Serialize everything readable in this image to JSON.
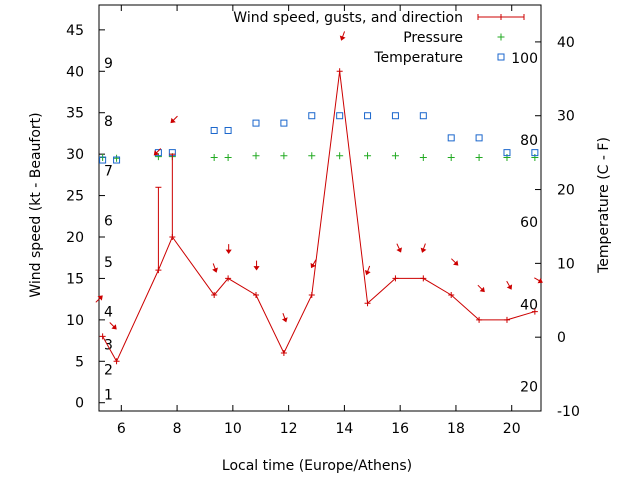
{
  "chart_data": {
    "type": "line",
    "xlabel": "Local time (Europe/Athens)",
    "ylabel_left": "Wind speed (kt - Beaufort)",
    "ylabel_right": "Temperature (C - F)",
    "xlim": [
      5.2,
      21.05
    ],
    "xticks": [
      6,
      8,
      10,
      12,
      14,
      16,
      18,
      20
    ],
    "ylim_left": [
      -1,
      48
    ],
    "yticks_left": [
      0,
      5,
      10,
      15,
      20,
      25,
      30,
      35,
      40,
      45
    ],
    "ylim_right": [
      -10,
      45
    ],
    "yticks_right": [
      -10,
      0,
      10,
      20,
      30,
      40
    ],
    "beaufort_labels": [
      {
        "label": "1",
        "kt": 1
      },
      {
        "label": "2",
        "kt": 4
      },
      {
        "label": "3",
        "kt": 7
      },
      {
        "label": "4",
        "kt": 11
      },
      {
        "label": "5",
        "kt": 17
      },
      {
        "label": "6",
        "kt": 22
      },
      {
        "label": "7",
        "kt": 28
      },
      {
        "label": "8",
        "kt": 34
      },
      {
        "label": "9",
        "kt": 41
      }
    ],
    "fahrenheit_labels": [
      {
        "label": "20",
        "celsius": -6.7
      },
      {
        "label": "40",
        "celsius": 4.4
      },
      {
        "label": "60",
        "celsius": 15.6
      },
      {
        "label": "80",
        "celsius": 26.7
      },
      {
        "label": "100",
        "celsius": 37.8
      }
    ],
    "legend": {
      "position": "top-right",
      "entries": [
        "Wind speed, gusts, and direction",
        "Pressure",
        "Temperature"
      ]
    },
    "colors": {
      "wind": "#cc0000",
      "pressure": "#22aa22",
      "temperature": "#1a66cc"
    },
    "wind_speed": {
      "name": "Wind speed, gusts, and direction",
      "x": [
        5.33,
        5.83,
        7.33,
        7.83,
        9.33,
        9.83,
        10.83,
        11.83,
        12.83,
        13.83,
        14.83,
        15.83,
        16.83,
        17.83,
        18.83,
        19.83,
        20.83
      ],
      "y": [
        8,
        5,
        16,
        20,
        13,
        15,
        13,
        6,
        13,
        40,
        12,
        15,
        15,
        13,
        10,
        10,
        11
      ],
      "gusts": [
        null,
        null,
        26,
        30,
        null,
        null,
        null,
        null,
        null,
        null,
        null,
        null,
        null,
        null,
        null,
        null,
        null
      ]
    },
    "wind_direction_arrows": [
      {
        "x": 5.2,
        "y": 12.5,
        "dir": 225
      },
      {
        "x": 5.7,
        "y": 9.3,
        "dir": 315
      },
      {
        "x": 7.3,
        "y": 30.3,
        "dir": 45
      },
      {
        "x": 7.9,
        "y": 34.2,
        "dir": 45
      },
      {
        "x": 9.35,
        "y": 16.3,
        "dir": 340
      },
      {
        "x": 9.85,
        "y": 18.6,
        "dir": 0
      },
      {
        "x": 10.85,
        "y": 16.6,
        "dir": 0
      },
      {
        "x": 11.85,
        "y": 10.3,
        "dir": 340
      },
      {
        "x": 12.9,
        "y": 16.8,
        "dir": 30
      },
      {
        "x": 13.95,
        "y": 44.3,
        "dir": 20
      },
      {
        "x": 14.85,
        "y": 16.0,
        "dir": 20
      },
      {
        "x": 15.95,
        "y": 18.7,
        "dir": 335
      },
      {
        "x": 16.85,
        "y": 18.7,
        "dir": 20
      },
      {
        "x": 17.95,
        "y": 17.0,
        "dir": 315
      },
      {
        "x": 18.9,
        "y": 13.8,
        "dir": 315
      },
      {
        "x": 19.9,
        "y": 14.2,
        "dir": 330
      },
      {
        "x": 20.95,
        "y": 14.8,
        "dir": 300
      }
    ],
    "pressure": {
      "name": "Pressure",
      "x": [
        5.33,
        5.83,
        7.33,
        7.83,
        9.33,
        9.83,
        10.83,
        11.83,
        12.83,
        13.83,
        14.83,
        15.83,
        16.83,
        17.83,
        18.83,
        19.83,
        20.83
      ],
      "y_left_axis": [
        29.6,
        29.5,
        29.7,
        29.7,
        29.6,
        29.6,
        29.8,
        29.8,
        29.8,
        29.8,
        29.8,
        29.8,
        29.6,
        29.6,
        29.6,
        29.6,
        29.6
      ]
    },
    "temperature": {
      "name": "Temperature",
      "x": [
        5.33,
        5.83,
        7.33,
        7.83,
        9.33,
        9.83,
        10.83,
        11.83,
        12.83,
        13.83,
        14.83,
        15.83,
        16.83,
        17.83,
        18.83,
        19.83,
        20.83
      ],
      "y": [
        24,
        24,
        25,
        25,
        28,
        28,
        29,
        29,
        30,
        30,
        30,
        30,
        30,
        27,
        27,
        25,
        25
      ]
    }
  }
}
